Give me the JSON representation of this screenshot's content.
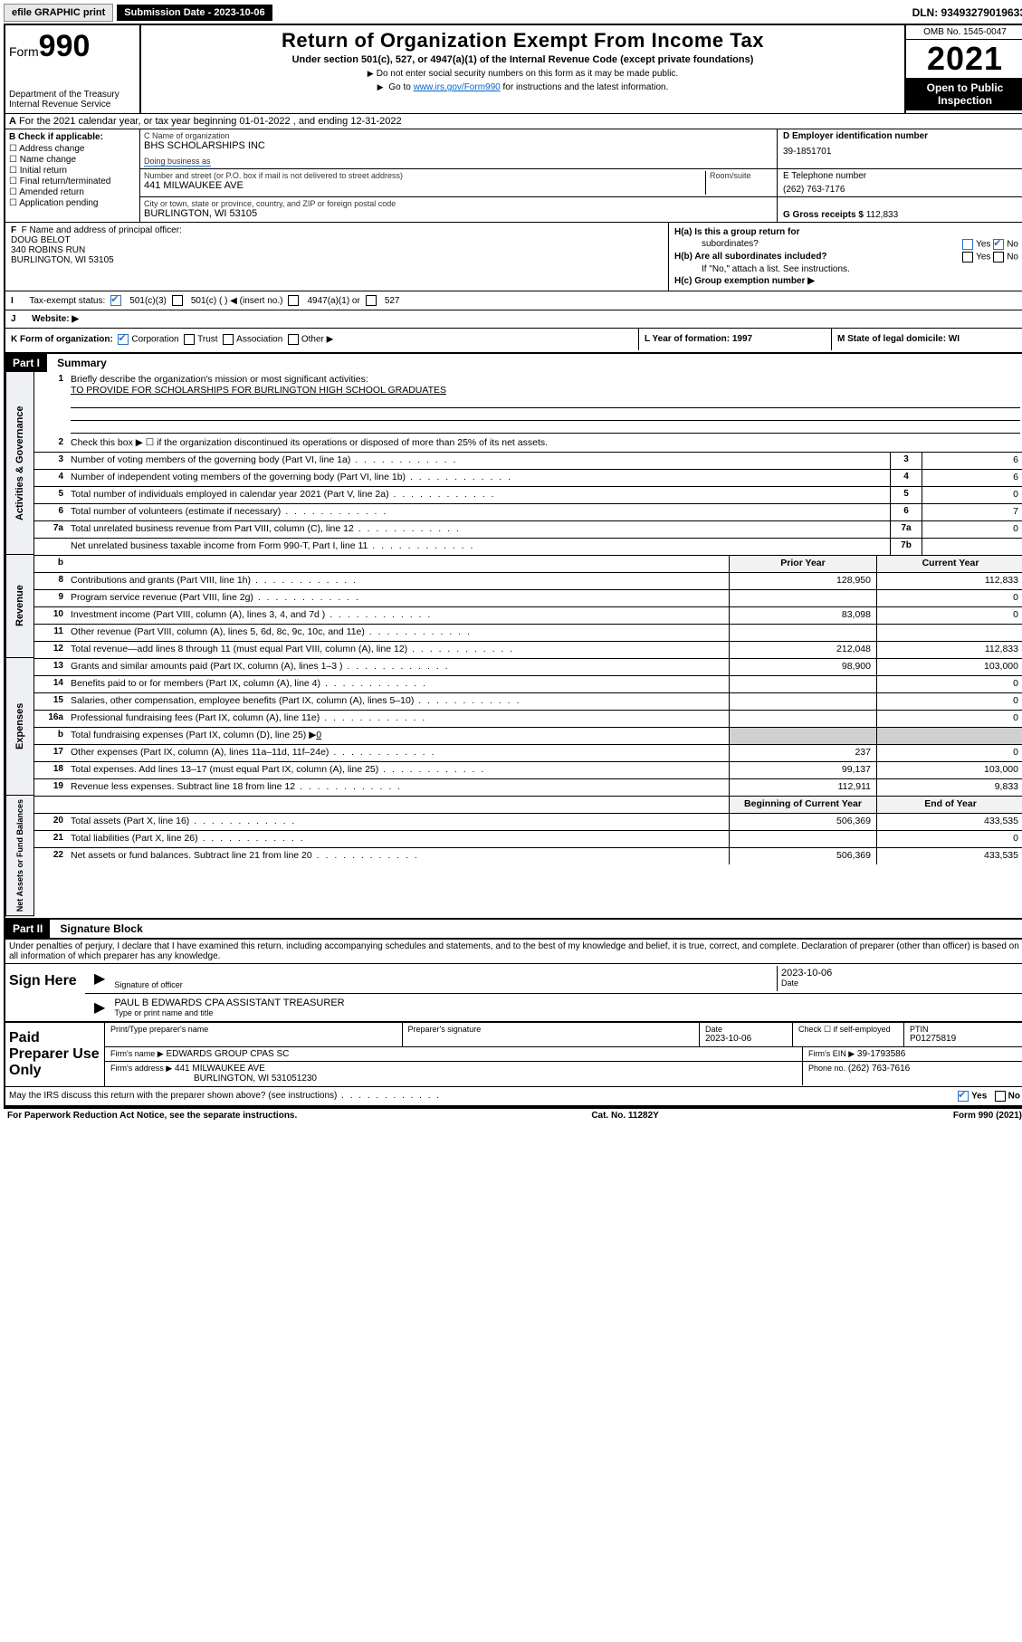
{
  "topbar": {
    "efile_label": "efile GRAPHIC print",
    "submission_label": "Submission Date - 2023-10-06",
    "dln_label": "DLN: 93493279019633"
  },
  "header": {
    "form_word": "Form",
    "form_num": "990",
    "dept": "Department of the Treasury\nInternal Revenue Service",
    "title": "Return of Organization Exempt From Income Tax",
    "subtitle": "Under section 501(c), 527, or 4947(a)(1) of the Internal Revenue Code (except private foundations)",
    "note1": "Do not enter social security numbers on this form as it may be made public.",
    "note2_pre": "Go to ",
    "note2_link": "www.irs.gov/Form990",
    "note2_post": " for instructions and the latest information.",
    "omb": "OMB No. 1545-0047",
    "year": "2021",
    "open": "Open to Public Inspection"
  },
  "line_a": "For the 2021 calendar year, or tax year beginning 01-01-2022   , and ending 12-31-2022",
  "col_b": {
    "label": "B Check if applicable:",
    "opts": [
      "Address change",
      "Name change",
      "Initial return",
      "Final return/terminated",
      "Amended return",
      "Application pending"
    ]
  },
  "col_c": {
    "name_lbl": "C Name of organization",
    "name_val": "BHS SCHOLARSHIPS INC",
    "dba_lbl": "Doing business as",
    "street_lbl": "Number and street (or P.O. box if mail is not delivered to street address)",
    "room_lbl": "Room/suite",
    "street_val": "441 MILWAUKEE AVE",
    "city_lbl": "City or town, state or province, country, and ZIP or foreign postal code",
    "city_val": "BURLINGTON, WI  53105"
  },
  "col_d": {
    "lbl": "D Employer identification number",
    "val": "39-1851701"
  },
  "col_e": {
    "lbl": "E Telephone number",
    "val": "(262) 763-7176"
  },
  "col_g": {
    "lbl": "G Gross receipts $",
    "val": "112,833"
  },
  "col_f": {
    "lbl": "F  Name and address of principal officer:",
    "line1": "DOUG BELOT",
    "line2": "340 ROBINS RUN",
    "line3": "BURLINGTON, WI  53105"
  },
  "col_h": {
    "ha_lbl": "H(a)  Is this a group return for",
    "ha_lbl2": "subordinates?",
    "hb_lbl": "H(b)  Are all subordinates included?",
    "hb_note": "If \"No,\" attach a list. See instructions.",
    "hc_lbl": "H(c)  Group exemption number ▶",
    "yes": "Yes",
    "no": "No"
  },
  "row_i": {
    "lbl": "Tax-exempt status:",
    "o1": "501(c)(3)",
    "o2": "501(c) (  ) ◀ (insert no.)",
    "o3": "4947(a)(1) or",
    "o4": "527"
  },
  "row_j": {
    "lbl": "Website: ▶"
  },
  "row_k": {
    "lbl": "K Form of organization:",
    "o1": "Corporation",
    "o2": "Trust",
    "o3": "Association",
    "o4": "Other ▶"
  },
  "row_l": {
    "lbl": "L Year of formation: 1997"
  },
  "row_m": {
    "lbl": "M State of legal domicile: WI"
  },
  "parts": {
    "p1": "Part I",
    "p1t": "Summary",
    "p2": "Part II",
    "p2t": "Signature Block"
  },
  "vtabs": {
    "v1": "Activities & Governance",
    "v2": "Revenue",
    "v3": "Expenses",
    "v4": "Net Assets or Fund Balances"
  },
  "summary": {
    "l1_lbl": "Briefly describe the organization's mission or most significant activities:",
    "l1_val": "TO PROVIDE FOR SCHOLARSHIPS FOR BURLINGTON HIGH SCHOOL GRADUATES",
    "l2_lbl": "Check this box ▶ ☐  if the organization discontinued its operations or disposed of more than 25% of its net assets.",
    "rows_ag": [
      {
        "n": "3",
        "t": "Number of voting members of the governing body (Part VI, line 1a)",
        "c": "3",
        "v": "6"
      },
      {
        "n": "4",
        "t": "Number of independent voting members of the governing body (Part VI, line 1b)",
        "c": "4",
        "v": "6"
      },
      {
        "n": "5",
        "t": "Total number of individuals employed in calendar year 2021 (Part V, line 2a)",
        "c": "5",
        "v": "0"
      },
      {
        "n": "6",
        "t": "Total number of volunteers (estimate if necessary)",
        "c": "6",
        "v": "7"
      },
      {
        "n": "7a",
        "t": "Total unrelated business revenue from Part VIII, column (C), line 12",
        "c": "7a",
        "v": "0"
      },
      {
        "n": "",
        "t": "Net unrelated business taxable income from Form 990-T, Part I, line 11",
        "c": "7b",
        "v": ""
      }
    ],
    "hdr_b": "b",
    "hdr_prior": "Prior Year",
    "hdr_curr": "Current Year",
    "rows_rev": [
      {
        "n": "8",
        "t": "Contributions and grants (Part VIII, line 1h)",
        "p": "128,950",
        "c": "112,833"
      },
      {
        "n": "9",
        "t": "Program service revenue (Part VIII, line 2g)",
        "p": "",
        "c": "0"
      },
      {
        "n": "10",
        "t": "Investment income (Part VIII, column (A), lines 3, 4, and 7d )",
        "p": "83,098",
        "c": "0"
      },
      {
        "n": "11",
        "t": "Other revenue (Part VIII, column (A), lines 5, 6d, 8c, 9c, 10c, and 11e)",
        "p": "",
        "c": ""
      },
      {
        "n": "12",
        "t": "Total revenue—add lines 8 through 11 (must equal Part VIII, column (A), line 12)",
        "p": "212,048",
        "c": "112,833"
      }
    ],
    "rows_exp": [
      {
        "n": "13",
        "t": "Grants and similar amounts paid (Part IX, column (A), lines 1–3 )",
        "p": "98,900",
        "c": "103,000"
      },
      {
        "n": "14",
        "t": "Benefits paid to or for members (Part IX, column (A), line 4)",
        "p": "",
        "c": "0"
      },
      {
        "n": "15",
        "t": "Salaries, other compensation, employee benefits (Part IX, column (A), lines 5–10)",
        "p": "",
        "c": "0"
      },
      {
        "n": "16a",
        "t": "Professional fundraising fees (Part IX, column (A), line 11e)",
        "p": "",
        "c": "0"
      }
    ],
    "l16b_n": "b",
    "l16b_t": "Total fundraising expenses (Part IX, column (D), line 25) ▶",
    "l16b_v": "0",
    "rows_exp2": [
      {
        "n": "17",
        "t": "Other expenses (Part IX, column (A), lines 11a–11d, 11f–24e)",
        "p": "237",
        "c": "0"
      },
      {
        "n": "18",
        "t": "Total expenses. Add lines 13–17 (must equal Part IX, column (A), line 25)",
        "p": "99,137",
        "c": "103,000"
      },
      {
        "n": "19",
        "t": "Revenue less expenses. Subtract line 18 from line 12",
        "p": "112,911",
        "c": "9,833"
      }
    ],
    "hdr_beg": "Beginning of Current Year",
    "hdr_end": "End of Year",
    "rows_net": [
      {
        "n": "20",
        "t": "Total assets (Part X, line 16)",
        "p": "506,369",
        "c": "433,535"
      },
      {
        "n": "21",
        "t": "Total liabilities (Part X, line 26)",
        "p": "",
        "c": "0"
      },
      {
        "n": "22",
        "t": "Net assets or fund balances. Subtract line 21 from line 20",
        "p": "506,369",
        "c": "433,535"
      }
    ]
  },
  "sig": {
    "decl": "Under penalties of perjury, I declare that I have examined this return, including accompanying schedules and statements, and to the best of my knowledge and belief, it is true, correct, and complete. Declaration of preparer (other than officer) is based on all information of which preparer has any knowledge.",
    "sign_here": "Sign Here",
    "sig_officer_lbl": "Signature of officer",
    "date_lbl": "Date",
    "date_val": "2023-10-06",
    "name_val": "PAUL B EDWARDS CPA  ASSISTANT TREASURER",
    "name_lbl": "Type or print name and title",
    "paid": "Paid Preparer Use Only",
    "p_name_lbl": "Print/Type preparer's name",
    "p_sig_lbl": "Preparer's signature",
    "p_date_lbl": "Date",
    "p_date_val": "2023-10-06",
    "p_check_lbl": "Check ☐ if self-employed",
    "p_ptin_lbl": "PTIN",
    "p_ptin_val": "P01275819",
    "firm_name_lbl": "Firm's name    ▶",
    "firm_name_val": "EDWARDS GROUP CPAS SC",
    "firm_ein_lbl": "Firm's EIN ▶",
    "firm_ein_val": "39-1793586",
    "firm_addr_lbl": "Firm's address ▶",
    "firm_addr_val1": "441 MILWAUKEE AVE",
    "firm_addr_val2": "BURLINGTON, WI  531051230",
    "phone_lbl": "Phone no.",
    "phone_val": "(262) 763-7616",
    "may_irs": "May the IRS discuss this return with the preparer shown above? (see instructions)",
    "yes": "Yes",
    "no": "No"
  },
  "footer": {
    "left": "For Paperwork Reduction Act Notice, see the separate instructions.",
    "mid": "Cat. No. 11282Y",
    "right": "Form 990 (2021)"
  }
}
